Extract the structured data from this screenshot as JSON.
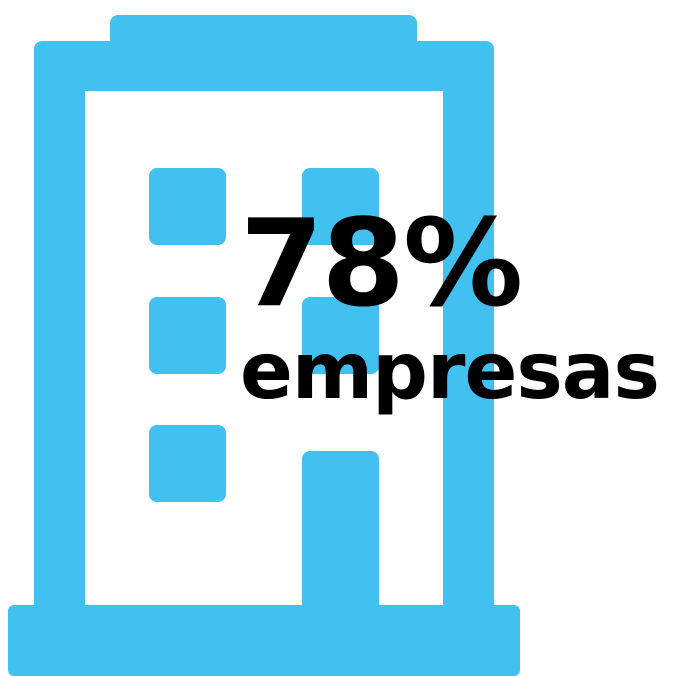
{
  "stat": {
    "value": "78%",
    "label": "empresas"
  },
  "icon": {
    "name": "building-icon",
    "color": "#42c0ef"
  }
}
